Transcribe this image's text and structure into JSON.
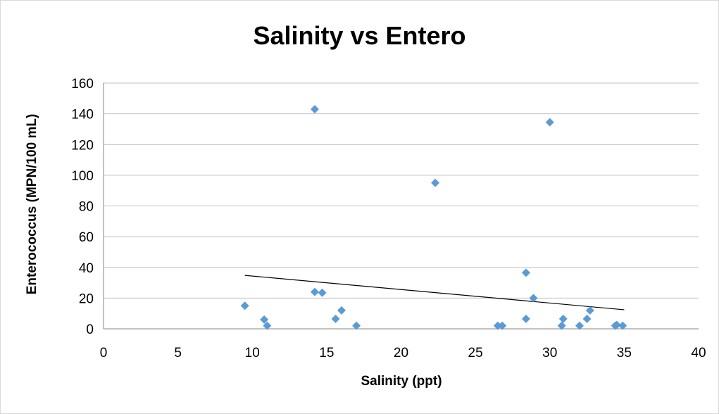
{
  "chart_data": {
    "type": "scatter",
    "title": "Salinity vs Entero",
    "xlabel": "Salinity (ppt)",
    "ylabel": "Enterococcus (MPN/100 mL)",
    "xlim": [
      0,
      40
    ],
    "ylim": [
      0,
      160
    ],
    "xticks": [
      "0",
      "5",
      "10",
      "15",
      "20",
      "25",
      "30",
      "35",
      "40"
    ],
    "yticks": [
      "0",
      "20",
      "40",
      "60",
      "80",
      "100",
      "120",
      "140",
      "160"
    ],
    "grid": "horizontal",
    "legend": "none",
    "marker_color": "#5b9bd5",
    "series": [
      {
        "points": [
          {
            "x": 9.5,
            "y": 15
          },
          {
            "x": 10.8,
            "y": 6
          },
          {
            "x": 11.0,
            "y": 2
          },
          {
            "x": 14.2,
            "y": 143
          },
          {
            "x": 14.2,
            "y": 24
          },
          {
            "x": 14.7,
            "y": 23.5
          },
          {
            "x": 15.6,
            "y": 6.5
          },
          {
            "x": 16.0,
            "y": 12
          },
          {
            "x": 17.0,
            "y": 2
          },
          {
            "x": 22.3,
            "y": 95
          },
          {
            "x": 26.5,
            "y": 2
          },
          {
            "x": 26.8,
            "y": 2
          },
          {
            "x": 28.4,
            "y": 36.5
          },
          {
            "x": 28.4,
            "y": 6.5
          },
          {
            "x": 28.9,
            "y": 20
          },
          {
            "x": 30.0,
            "y": 134.5
          },
          {
            "x": 30.8,
            "y": 2
          },
          {
            "x": 30.9,
            "y": 6.5
          },
          {
            "x": 32.0,
            "y": 2
          },
          {
            "x": 32.5,
            "y": 6.5
          },
          {
            "x": 32.7,
            "y": 12
          },
          {
            "x": 34.4,
            "y": 2
          },
          {
            "x": 34.5,
            "y": 2.5
          },
          {
            "x": 34.9,
            "y": 2
          }
        ]
      }
    ],
    "trendline": {
      "type": "linear",
      "x": [
        9.5,
        35.0
      ],
      "y": [
        34.8,
        12.4
      ],
      "color": "#000000"
    }
  }
}
